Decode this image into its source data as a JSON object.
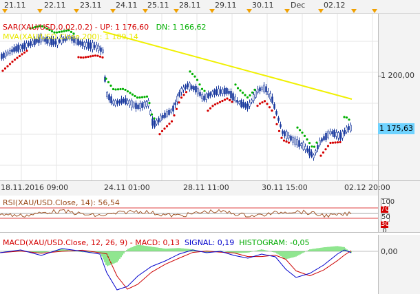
{
  "top_axis": {
    "labels": [
      "21.11",
      "22.11",
      "23.11",
      "24.11",
      "25.11",
      "28.11",
      "29.11",
      "30.11",
      "Dec",
      "02.12"
    ]
  },
  "main_pane": {
    "legend_sar": {
      "prefix": "SAR(XAU/USD,0.02,0.2)  -  ",
      "up_label": "UP: 1 176,60",
      "dn_label": "DN: 1 166,62",
      "color_up": "#d40000",
      "color_dn": "#00b000"
    },
    "legend_mva": {
      "text": "MVA(XAU/USD.Close,200): 1 189,14",
      "color": "#f0f000"
    },
    "price_label": "1 200,00",
    "last_price": "1 175,63"
  },
  "time_axis": {
    "labels": [
      "18.11.2016 09:00",
      "24.11 01:00",
      "28.11 11:00",
      "30.11 15:00",
      "02.12 20:00"
    ]
  },
  "rsi_pane": {
    "legend": "RSI(XAU/USD.Close, 14): 56,54",
    "levels": [
      "100",
      "70",
      "50",
      "30",
      "0"
    ]
  },
  "macd_pane": {
    "legend_macd": "MACD(XAU/USD.Close, 12, 26, 9)  -  MACD: 0,13",
    "legend_signal": "SIGNAL: 0,19",
    "legend_hist": "HISTOGRAM: -0,05",
    "zero_label": "0,00"
  },
  "colors": {
    "candle": "#1a3a9e",
    "candle_up": "#2d4fb8",
    "sar_up": "#d40000",
    "sar_dn": "#00b000",
    "mva": "#f0f000",
    "rsi_line": "#9a4a1a",
    "macd_line": "#0000cc",
    "signal_line": "#cc0000",
    "histogram": "#22cc22",
    "axis_highlight": "#6fd3ff"
  }
}
